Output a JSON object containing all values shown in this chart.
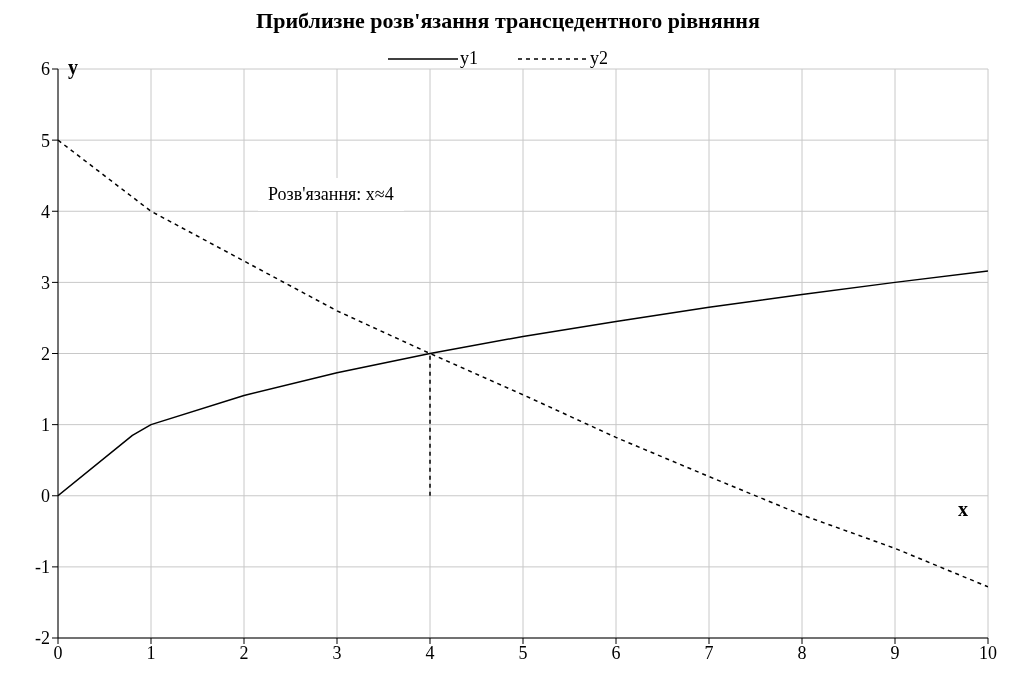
{
  "chart_data": {
    "type": "line",
    "title": "Приблизне розв'язання трансцедентного рівняння",
    "xlabel": "x",
    "ylabel": "y",
    "series": [
      {
        "name": "y1",
        "color": "#000000",
        "line_style": "solid",
        "x": [
          0,
          0.8,
          1,
          2,
          3,
          4,
          5,
          6,
          7,
          8,
          9,
          10
        ],
        "values": [
          0,
          0.85,
          1,
          1.41,
          1.73,
          2,
          2.24,
          2.45,
          2.65,
          2.83,
          3,
          3.16
        ]
      },
      {
        "name": "y2",
        "color": "#000000",
        "line_style": "dashed",
        "x": [
          0,
          1,
          2,
          3,
          4,
          5,
          6,
          7,
          8,
          9,
          10
        ],
        "values": [
          5,
          4,
          3.3,
          2.6,
          2,
          1.42,
          0.82,
          0.27,
          -0.27,
          -0.74,
          -1.28
        ]
      },
      {
        "color": "#000000",
        "line_style": "dashed",
        "x": [
          4,
          4
        ],
        "values": [
          0,
          2
        ]
      }
    ],
    "annotations": [
      "Розв'язання: x≈4"
    ],
    "xlim": [
      0,
      10
    ],
    "xticks": [
      0,
      1,
      2,
      3,
      4,
      5,
      6,
      7,
      8,
      9,
      10
    ],
    "ylim": [
      -2,
      6
    ],
    "yticks": [
      -2,
      -1,
      0,
      1,
      2,
      3,
      4,
      5,
      6
    ],
    "grid": true,
    "legend": "top",
    "marker": "none"
  }
}
